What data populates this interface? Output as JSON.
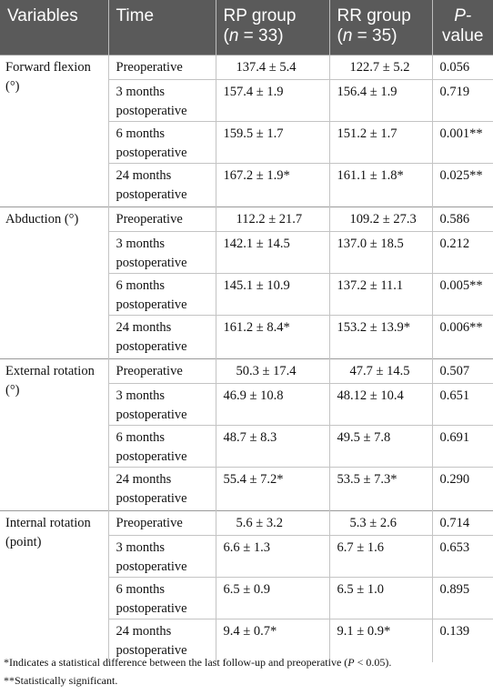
{
  "header": {
    "columns": [
      {
        "line1": "Variables"
      },
      {
        "line1": "Time"
      },
      {
        "line1": "RP group",
        "pre": "(",
        "italic": "n",
        "post": " = 33)"
      },
      {
        "line1": "RR group",
        "pre": "(",
        "italic": "n",
        "post": " = 35)"
      },
      {
        "italic": "P-",
        "line2": "value"
      }
    ]
  },
  "groups": [
    {
      "variable": "Forward flexion (°)",
      "rows": [
        [
          "Preoperative",
          "137.4 ± 5.4",
          "122.7 ± 5.2",
          "0.056"
        ],
        [
          "3 months postoperative",
          "157.4 ± 1.9",
          "156.4 ± 1.9",
          "0.719"
        ],
        [
          "6 months postoperative",
          "159.5 ± 1.7",
          "151.2 ± 1.7",
          "0.001**"
        ],
        [
          "24 months postoperative",
          "167.2 ± 1.9*",
          "161.1 ± 1.8*",
          "0.025**"
        ]
      ]
    },
    {
      "variable": "Abduction (°)",
      "rows": [
        [
          "Preoperative",
          "112.2 ± 21.7",
          "109.2 ± 27.3",
          "0.586"
        ],
        [
          "3 months postoperative",
          "142.1 ± 14.5",
          "137.0 ± 18.5",
          "0.212"
        ],
        [
          "6 months postoperative",
          "145.1 ± 10.9",
          "137.2 ± 11.1",
          "0.005**"
        ],
        [
          "24 months postoperative",
          "161.2 ± 8.4*",
          "153.2 ± 13.9*",
          "0.006**"
        ]
      ]
    },
    {
      "variable": "External rotation (°)",
      "rows": [
        [
          "Preoperative",
          "50.3 ± 17.4",
          "47.7 ± 14.5",
          "0.507"
        ],
        [
          "3 months postoperative",
          "46.9 ± 10.8",
          "48.12 ± 10.4",
          "0.651"
        ],
        [
          "6 months postoperative",
          "48.7 ± 8.3",
          "49.5 ± 7.8",
          "0.691"
        ],
        [
          "24 months postoperative",
          "55.4 ± 7.2*",
          "53.5 ± 7.3*",
          "0.290"
        ]
      ]
    },
    {
      "variable": "Internal rotation (point)",
      "rows": [
        [
          "Preoperative",
          "5.6 ± 3.2",
          "5.3 ± 2.6",
          "0.714"
        ],
        [
          "3 months postoperative",
          "6.6 ± 1.3",
          "6.7 ± 1.6",
          "0.653"
        ],
        [
          "6 months postoperative",
          "6.5 ± 0.9",
          "6.5 ± 1.0",
          "0.895"
        ],
        [
          "24 months postoperative",
          "9.4 ± 0.7*",
          "9.1 ± 0.9*",
          "0.139"
        ]
      ]
    }
  ],
  "footnotes": [
    {
      "pre": "*Indicates a statistical difference between the last follow-up and preoperative (",
      "italic": "P",
      "post": " < 0.05)."
    },
    {
      "pre": "**Statistically significant."
    }
  ]
}
